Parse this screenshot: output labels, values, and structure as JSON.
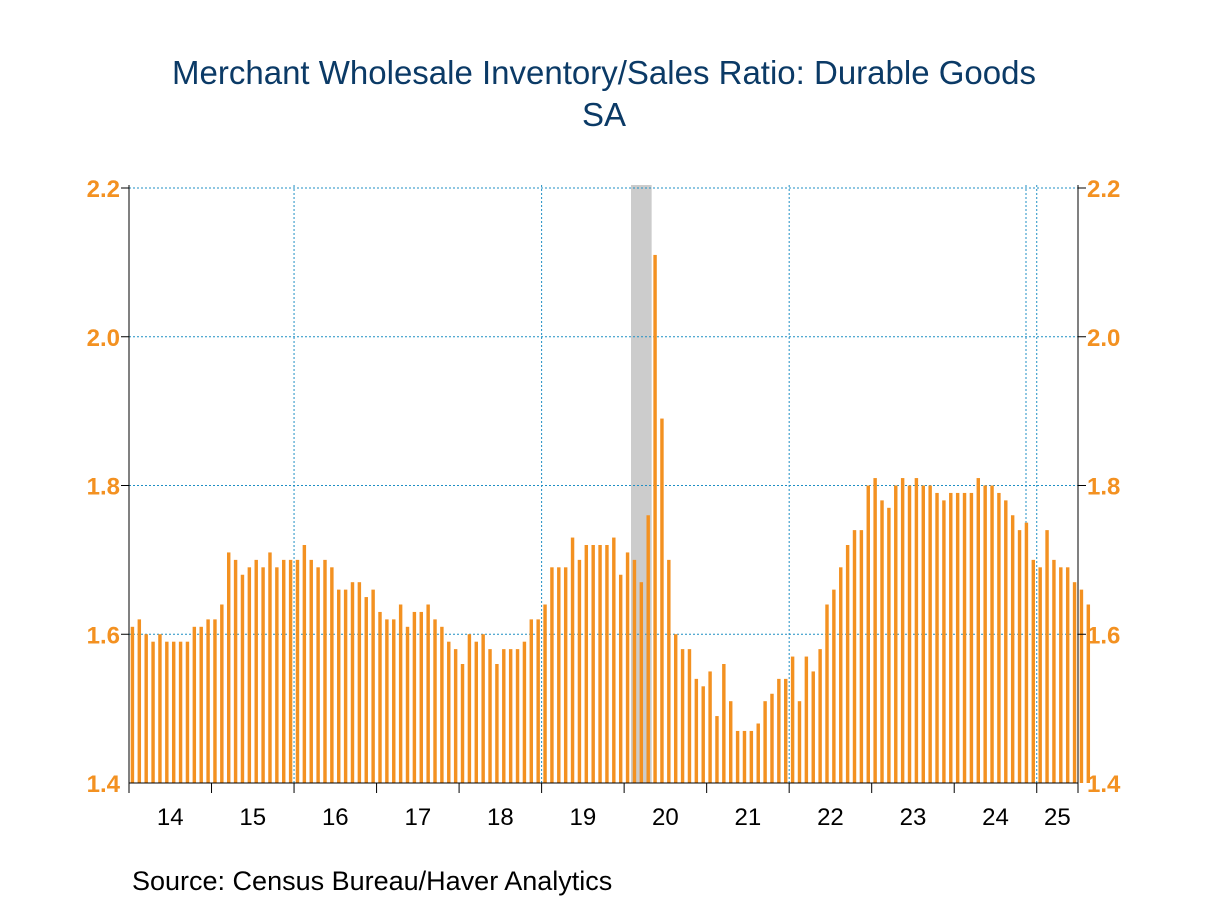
{
  "chart_data": {
    "type": "bar",
    "title": "Merchant Wholesale Inventory/Sales Ratio: Durable Goods",
    "subtitle": "SA",
    "source": "Source:  Census Bureau/Haver Analytics",
    "ylim": [
      1.4,
      2.2
    ],
    "yticks": [
      "1.4",
      "1.6",
      "1.8",
      "2.0",
      "2.2"
    ],
    "xticks": [
      "14",
      "15",
      "16",
      "17",
      "18",
      "19",
      "20",
      "21",
      "22",
      "23",
      "24",
      "25"
    ],
    "xrange": [
      "2014-01",
      "2025-06"
    ],
    "grid": true,
    "recession_shading": {
      "start": "2020-02",
      "end": "2020-04"
    },
    "colors": {
      "bars": "#f39121",
      "grid": "#1f8fc4",
      "recession": "#cccccc",
      "title": "#0b3a66"
    },
    "series": [
      {
        "start": "2014-01",
        "values": [
          1.61,
          1.62,
          1.6,
          1.59,
          1.6,
          1.59,
          1.59,
          1.59,
          1.59,
          1.61,
          1.61,
          1.62,
          1.62,
          1.64,
          1.71,
          1.7,
          1.68,
          1.69,
          1.7,
          1.69,
          1.71,
          1.69,
          1.7,
          1.7,
          1.7,
          1.72,
          1.7,
          1.69,
          1.7,
          1.69,
          1.66,
          1.66,
          1.67,
          1.67,
          1.65,
          1.66,
          1.63,
          1.62,
          1.62,
          1.64,
          1.61,
          1.63,
          1.63,
          1.64,
          1.62,
          1.61,
          1.59,
          1.58,
          1.56,
          1.6,
          1.59,
          1.6,
          1.58,
          1.56,
          1.58,
          1.58,
          1.58,
          1.59,
          1.62,
          1.62,
          1.64,
          1.69,
          1.69,
          1.69,
          1.73,
          1.7,
          1.72,
          1.72,
          1.72,
          1.72,
          1.73,
          1.68,
          1.71,
          1.7,
          1.67,
          1.76,
          2.11,
          1.89,
          1.7,
          1.6,
          1.58,
          1.58,
          1.54,
          1.53,
          1.55,
          1.49,
          1.56,
          1.51,
          1.47,
          1.47,
          1.47,
          1.48,
          1.51,
          1.52,
          1.54,
          1.54,
          1.57,
          1.51,
          1.57,
          1.55,
          1.58,
          1.64,
          1.66,
          1.69,
          1.72,
          1.74,
          1.74,
          1.8,
          1.81,
          1.78,
          1.77,
          1.8,
          1.81,
          1.8,
          1.81,
          1.8,
          1.8,
          1.79,
          1.78,
          1.79,
          1.79,
          1.79,
          1.79,
          1.81,
          1.8,
          1.8,
          1.79,
          1.78,
          1.76,
          1.74,
          1.75,
          1.7,
          1.69,
          1.74,
          1.7,
          1.69,
          1.69,
          1.67,
          1.66,
          1.64
        ]
      }
    ]
  }
}
